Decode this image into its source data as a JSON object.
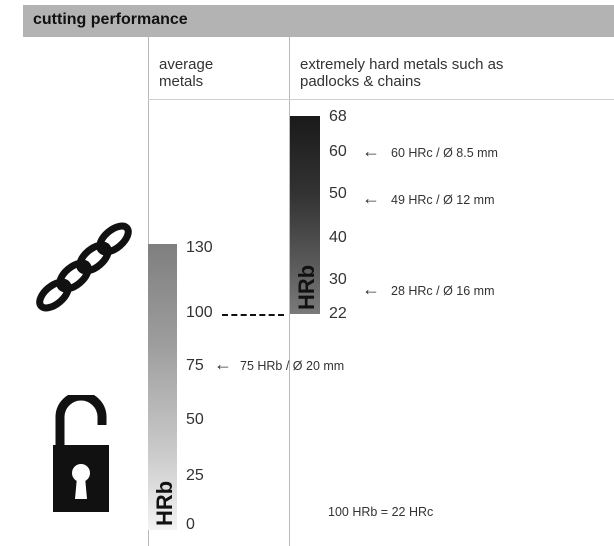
{
  "header": {
    "title": "cutting performance"
  },
  "columns": {
    "average_line1": "average",
    "average_line2": "metals",
    "hard_line1": "extremely hard metals such as",
    "hard_line2": "padlocks & chains"
  },
  "average_scale": {
    "unit": "HRb",
    "ticks": [
      "130",
      "100",
      "75",
      "50",
      "25",
      "0"
    ],
    "marker": "75 HRb / Ø 20 mm"
  },
  "hard_scale": {
    "unit": "HRb",
    "ticks": [
      "68",
      "60",
      "50",
      "40",
      "30",
      "22"
    ],
    "markers": [
      "60 HRc / Ø 8.5 mm",
      "49 HRc / Ø 12 mm",
      "28 HRc / Ø 16 mm"
    ]
  },
  "footnote": "100 HRb = 22 HRc",
  "icons": {
    "chain": "chain-icon",
    "padlock": "padlock-icon",
    "arrow": "←"
  }
}
